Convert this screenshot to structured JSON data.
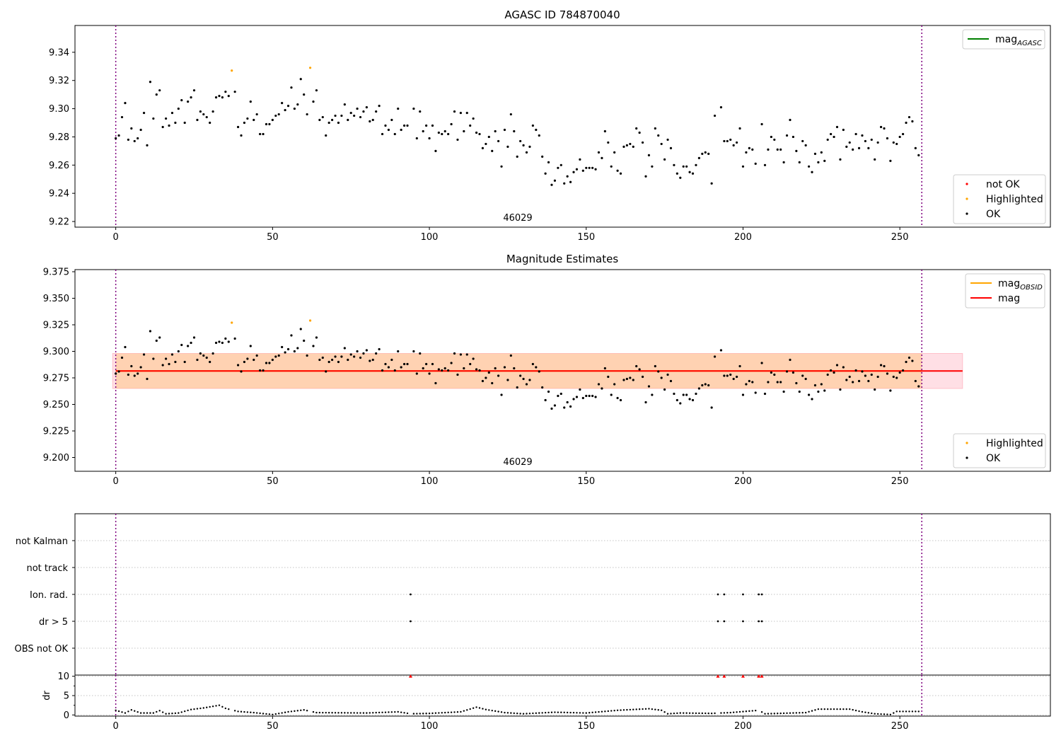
{
  "chart_data": [
    {
      "type": "scatter",
      "title": "AGASC ID 784870040",
      "annotation": "46029",
      "xlim": [
        -13,
        298
      ],
      "ylim": [
        9.216,
        9.359
      ],
      "xticks": [
        0,
        50,
        100,
        150,
        200,
        250
      ],
      "yticks": [
        9.22,
        9.24,
        9.26,
        9.28,
        9.3,
        9.32,
        9.34
      ],
      "ytick_labels": [
        "9.22",
        "9.24",
        "9.26",
        "9.28",
        "9.30",
        "9.32",
        "9.34"
      ],
      "vlines": [
        0,
        257
      ],
      "legend_upper": [
        {
          "label": "mag",
          "sub": "AGASC",
          "color": "#008000",
          "kind": "line"
        }
      ],
      "legend_lower": [
        {
          "label": "not OK",
          "color": "#ff0000",
          "kind": "dot"
        },
        {
          "label": "Highlighted",
          "color": "#ffa500",
          "kind": "dot"
        },
        {
          "label": "OK",
          "color": "#000000",
          "kind": "dot"
        }
      ],
      "highlighted": [
        [
          37,
          9.327
        ],
        [
          62,
          9.329
        ]
      ],
      "points": [
        [
          0,
          9.279
        ],
        [
          1,
          9.281
        ],
        [
          2,
          9.294
        ],
        [
          3,
          9.304
        ],
        [
          4,
          9.278
        ],
        [
          5,
          9.286
        ],
        [
          6,
          9.277
        ],
        [
          7,
          9.279
        ],
        [
          8,
          9.285
        ],
        [
          9,
          9.297
        ],
        [
          10,
          9.274
        ],
        [
          11,
          9.319
        ],
        [
          12,
          9.293
        ],
        [
          13,
          9.31
        ],
        [
          14,
          9.313
        ],
        [
          15,
          9.287
        ],
        [
          16,
          9.293
        ],
        [
          17,
          9.288
        ],
        [
          18,
          9.297
        ],
        [
          19,
          9.29
        ],
        [
          20,
          9.3
        ],
        [
          21,
          9.306
        ],
        [
          22,
          9.29
        ],
        [
          23,
          9.305
        ],
        [
          24,
          9.308
        ],
        [
          25,
          9.313
        ],
        [
          26,
          9.292
        ],
        [
          27,
          9.298
        ],
        [
          28,
          9.296
        ],
        [
          29,
          9.294
        ],
        [
          30,
          9.29
        ],
        [
          31,
          9.298
        ],
        [
          32,
          9.308
        ],
        [
          33,
          9.309
        ],
        [
          34,
          9.308
        ],
        [
          35,
          9.312
        ],
        [
          36,
          9.309
        ],
        [
          38,
          9.312
        ],
        [
          39,
          9.287
        ],
        [
          40,
          9.281
        ],
        [
          41,
          9.29
        ],
        [
          42,
          9.293
        ],
        [
          43,
          9.305
        ],
        [
          44,
          9.292
        ],
        [
          45,
          9.296
        ],
        [
          46,
          9.282
        ],
        [
          47,
          9.282
        ],
        [
          48,
          9.289
        ],
        [
          49,
          9.289
        ],
        [
          50,
          9.292
        ],
        [
          51,
          9.295
        ],
        [
          52,
          9.296
        ],
        [
          53,
          9.304
        ],
        [
          54,
          9.299
        ],
        [
          55,
          9.302
        ],
        [
          56,
          9.315
        ],
        [
          57,
          9.3
        ],
        [
          58,
          9.303
        ],
        [
          59,
          9.321
        ],
        [
          60,
          9.31
        ],
        [
          61,
          9.296
        ],
        [
          63,
          9.305
        ],
        [
          64,
          9.313
        ],
        [
          65,
          9.292
        ],
        [
          66,
          9.294
        ],
        [
          67,
          9.281
        ],
        [
          68,
          9.29
        ],
        [
          69,
          9.292
        ],
        [
          70,
          9.295
        ],
        [
          71,
          9.29
        ],
        [
          72,
          9.295
        ],
        [
          73,
          9.303
        ],
        [
          74,
          9.292
        ],
        [
          75,
          9.297
        ],
        [
          76,
          9.295
        ],
        [
          77,
          9.3
        ],
        [
          78,
          9.294
        ],
        [
          79,
          9.298
        ],
        [
          80,
          9.301
        ],
        [
          81,
          9.291
        ],
        [
          82,
          9.292
        ],
        [
          83,
          9.298
        ],
        [
          84,
          9.302
        ],
        [
          85,
          9.282
        ],
        [
          86,
          9.288
        ],
        [
          87,
          9.285
        ],
        [
          88,
          9.292
        ],
        [
          89,
          9.282
        ],
        [
          90,
          9.3
        ],
        [
          91,
          9.285
        ],
        [
          92,
          9.288
        ],
        [
          93,
          9.288
        ],
        [
          95,
          9.3
        ],
        [
          96,
          9.279
        ],
        [
          97,
          9.298
        ],
        [
          98,
          9.284
        ],
        [
          99,
          9.288
        ],
        [
          100,
          9.279
        ],
        [
          101,
          9.288
        ],
        [
          102,
          9.27
        ],
        [
          103,
          9.283
        ],
        [
          104,
          9.282
        ],
        [
          105,
          9.284
        ],
        [
          106,
          9.282
        ],
        [
          107,
          9.289
        ],
        [
          108,
          9.298
        ],
        [
          109,
          9.278
        ],
        [
          110,
          9.297
        ],
        [
          111,
          9.284
        ],
        [
          112,
          9.297
        ],
        [
          113,
          9.288
        ],
        [
          114,
          9.293
        ],
        [
          115,
          9.283
        ],
        [
          116,
          9.282
        ],
        [
          117,
          9.272
        ],
        [
          118,
          9.275
        ],
        [
          119,
          9.28
        ],
        [
          120,
          9.27
        ],
        [
          121,
          9.284
        ],
        [
          122,
          9.277
        ],
        [
          123,
          9.259
        ],
        [
          124,
          9.285
        ],
        [
          125,
          9.273
        ],
        [
          126,
          9.296
        ],
        [
          127,
          9.284
        ],
        [
          128,
          9.266
        ],
        [
          129,
          9.277
        ],
        [
          130,
          9.274
        ],
        [
          131,
          9.269
        ],
        [
          132,
          9.273
        ],
        [
          133,
          9.288
        ],
        [
          134,
          9.285
        ],
        [
          135,
          9.281
        ],
        [
          136,
          9.266
        ],
        [
          137,
          9.254
        ],
        [
          138,
          9.262
        ],
        [
          139,
          9.246
        ],
        [
          140,
          9.249
        ],
        [
          141,
          9.258
        ],
        [
          142,
          9.26
        ],
        [
          143,
          9.247
        ],
        [
          144,
          9.252
        ],
        [
          145,
          9.248
        ],
        [
          146,
          9.255
        ],
        [
          147,
          9.257
        ],
        [
          148,
          9.264
        ],
        [
          149,
          9.256
        ],
        [
          150,
          9.258
        ],
        [
          151,
          9.258
        ],
        [
          152,
          9.258
        ],
        [
          153,
          9.257
        ],
        [
          154,
          9.269
        ],
        [
          155,
          9.265
        ],
        [
          156,
          9.284
        ],
        [
          157,
          9.276
        ],
        [
          158,
          9.259
        ],
        [
          159,
          9.269
        ],
        [
          160,
          9.256
        ],
        [
          161,
          9.254
        ],
        [
          162,
          9.273
        ],
        [
          163,
          9.274
        ],
        [
          164,
          9.275
        ],
        [
          165,
          9.273
        ],
        [
          166,
          9.286
        ],
        [
          167,
          9.283
        ],
        [
          168,
          9.276
        ],
        [
          169,
          9.252
        ],
        [
          170,
          9.267
        ],
        [
          171,
          9.259
        ],
        [
          172,
          9.286
        ],
        [
          173,
          9.281
        ],
        [
          174,
          9.275
        ],
        [
          175,
          9.264
        ],
        [
          176,
          9.278
        ],
        [
          177,
          9.272
        ],
        [
          178,
          9.26
        ],
        [
          179,
          9.254
        ],
        [
          180,
          9.251
        ],
        [
          181,
          9.259
        ],
        [
          182,
          9.259
        ],
        [
          183,
          9.255
        ],
        [
          184,
          9.254
        ],
        [
          185,
          9.26
        ],
        [
          186,
          9.265
        ],
        [
          187,
          9.268
        ],
        [
          188,
          9.269
        ],
        [
          189,
          9.268
        ],
        [
          190,
          9.247
        ],
        [
          191,
          9.295
        ],
        [
          193,
          9.301
        ],
        [
          194,
          9.277
        ],
        [
          195,
          9.277
        ],
        [
          196,
          9.278
        ],
        [
          197,
          9.274
        ],
        [
          198,
          9.276
        ],
        [
          199,
          9.286
        ],
        [
          200,
          9.259
        ],
        [
          201,
          9.269
        ],
        [
          202,
          9.272
        ],
        [
          203,
          9.271
        ],
        [
          204,
          9.261
        ],
        [
          206,
          9.289
        ],
        [
          207,
          9.26
        ],
        [
          208,
          9.271
        ],
        [
          209,
          9.28
        ],
        [
          210,
          9.278
        ],
        [
          211,
          9.271
        ],
        [
          212,
          9.271
        ],
        [
          213,
          9.262
        ],
        [
          214,
          9.281
        ],
        [
          215,
          9.292
        ],
        [
          216,
          9.28
        ],
        [
          217,
          9.27
        ],
        [
          218,
          9.262
        ],
        [
          219,
          9.277
        ],
        [
          220,
          9.274
        ],
        [
          221,
          9.259
        ],
        [
          222,
          9.255
        ],
        [
          223,
          9.268
        ],
        [
          224,
          9.262
        ],
        [
          225,
          9.269
        ],
        [
          226,
          9.263
        ],
        [
          227,
          9.278
        ],
        [
          228,
          9.282
        ],
        [
          229,
          9.28
        ],
        [
          230,
          9.287
        ],
        [
          231,
          9.264
        ],
        [
          232,
          9.285
        ],
        [
          233,
          9.273
        ],
        [
          234,
          9.276
        ],
        [
          235,
          9.271
        ],
        [
          236,
          9.282
        ],
        [
          237,
          9.272
        ],
        [
          238,
          9.281
        ],
        [
          239,
          9.277
        ],
        [
          240,
          9.272
        ],
        [
          241,
          9.278
        ],
        [
          242,
          9.264
        ],
        [
          243,
          9.276
        ],
        [
          244,
          9.287
        ],
        [
          245,
          9.286
        ],
        [
          246,
          9.279
        ],
        [
          247,
          9.263
        ],
        [
          248,
          9.276
        ],
        [
          249,
          9.275
        ],
        [
          250,
          9.28
        ],
        [
          251,
          9.282
        ],
        [
          252,
          9.29
        ],
        [
          253,
          9.294
        ],
        [
          254,
          9.291
        ],
        [
          255,
          9.272
        ],
        [
          256,
          9.267
        ]
      ]
    },
    {
      "type": "scatter",
      "title": "Magnitude Estimates",
      "annotation": "46029",
      "xlim": [
        -13,
        298
      ],
      "ylim": [
        9.187,
        9.377
      ],
      "xticks": [
        0,
        50,
        100,
        150,
        200,
        250
      ],
      "yticks": [
        9.2,
        9.225,
        9.25,
        9.275,
        9.3,
        9.325,
        9.35,
        9.375
      ],
      "ytick_labels": [
        "9.200",
        "9.225",
        "9.250",
        "9.275",
        "9.300",
        "9.325",
        "9.350",
        "9.375"
      ],
      "vlines": [
        0,
        257
      ],
      "mag_line": 9.2815,
      "band_outer": [
        9.265,
        9.298
      ],
      "band_inner": [
        9.265,
        9.298
      ],
      "band_x": [
        0,
        270
      ],
      "legend_upper": [
        {
          "label": "mag",
          "sub": "OBSID",
          "color": "#ffa500",
          "kind": "line"
        },
        {
          "label": "mag",
          "sub": "",
          "color": "#ff0000",
          "kind": "line"
        }
      ],
      "legend_lower": [
        {
          "label": "Highlighted",
          "color": "#ffa500",
          "kind": "dot"
        },
        {
          "label": "OK",
          "color": "#000000",
          "kind": "dot"
        }
      ],
      "highlighted": [
        [
          37,
          9.327
        ],
        [
          62,
          9.329
        ]
      ]
    },
    {
      "type": "scatter",
      "categories": [
        "not Kalman",
        "not track",
        "Ion. rad.",
        "dr > 5",
        "OBS not OK"
      ],
      "flags": {
        "Ion. rad.": [
          94,
          192,
          194,
          200,
          205,
          206
        ],
        "dr > 5": [
          94,
          192,
          194,
          200,
          205,
          206
        ]
      },
      "xlim": [
        -13,
        298
      ],
      "vlines": [
        0,
        257
      ]
    },
    {
      "type": "scatter",
      "ylabel": "dr",
      "xlim": [
        -13,
        298
      ],
      "ylim": [
        -0.3,
        10.3
      ],
      "xticks": [
        0,
        50,
        100,
        150,
        200,
        250
      ],
      "yticks": [
        0,
        5,
        10
      ],
      "ytick_labels": [
        "0",
        "5",
        "10"
      ],
      "vlines": [
        0,
        257
      ],
      "clipped_x": [
        94,
        192,
        194,
        200,
        205,
        206
      ],
      "clipped_color": "#ff0000",
      "clip_value": 10,
      "profile": [
        [
          0,
          1.2
        ],
        [
          3,
          0.5
        ],
        [
          5,
          1.3
        ],
        [
          8,
          0.5
        ],
        [
          12,
          0.5
        ],
        [
          14,
          1.1
        ],
        [
          16,
          0.3
        ],
        [
          20,
          0.5
        ],
        [
          24,
          1.4
        ],
        [
          28,
          1.8
        ],
        [
          33,
          2.5
        ],
        [
          35,
          1.7
        ],
        [
          39,
          0.9
        ],
        [
          44,
          0.6
        ],
        [
          50,
          0.1
        ],
        [
          55,
          0.8
        ],
        [
          60,
          1.3
        ],
        [
          64,
          0.6
        ],
        [
          80,
          0.5
        ],
        [
          90,
          0.8
        ],
        [
          94,
          0.3
        ],
        [
          100,
          0.4
        ],
        [
          110,
          0.8
        ],
        [
          115,
          2.0
        ],
        [
          118,
          1.4
        ],
        [
          124,
          0.6
        ],
        [
          130,
          0.3
        ],
        [
          140,
          0.7
        ],
        [
          150,
          0.5
        ],
        [
          160,
          1.2
        ],
        [
          170,
          1.6
        ],
        [
          174,
          1.2
        ],
        [
          176,
          0.3
        ],
        [
          180,
          0.5
        ],
        [
          190,
          0.4
        ],
        [
          196,
          0.6
        ],
        [
          205,
          1.2
        ],
        [
          207,
          0.3
        ],
        [
          220,
          0.6
        ],
        [
          224,
          1.5
        ],
        [
          234,
          1.5
        ],
        [
          238,
          0.8
        ],
        [
          242,
          0.3
        ],
        [
          247,
          0.1
        ],
        [
          249,
          0.9
        ],
        [
          256,
          0.9
        ]
      ]
    }
  ]
}
